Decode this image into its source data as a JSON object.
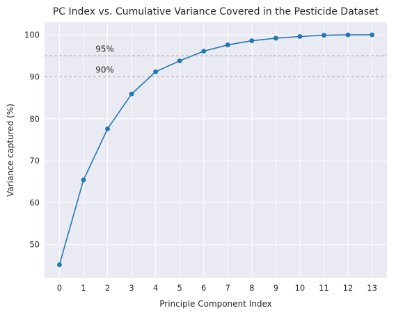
{
  "chart_data": {
    "type": "line",
    "title": "PC Index vs. Cumulative Variance Covered in the Pesticide Dataset",
    "xlabel": "Principle Component Index",
    "ylabel": "Variance captured (%)",
    "x": [
      0,
      1,
      2,
      3,
      4,
      5,
      6,
      7,
      8,
      9,
      10,
      11,
      12,
      13
    ],
    "values": [
      45.2,
      65.4,
      77.6,
      85.9,
      91.2,
      93.8,
      96.1,
      97.6,
      98.6,
      99.2,
      99.6,
      99.9,
      100.0,
      100.0
    ],
    "xlim": [
      -0.62,
      13.62
    ],
    "ylim": [
      42,
      103
    ],
    "xticks": [
      0,
      1,
      2,
      3,
      4,
      5,
      6,
      7,
      8,
      9,
      10,
      11,
      12,
      13
    ],
    "yticks": [
      50,
      60,
      70,
      80,
      90,
      100
    ],
    "reference_lines": [
      {
        "y": 95,
        "label": "95%",
        "label_x": 1.5
      },
      {
        "y": 90,
        "label": "90%",
        "label_x": 1.5
      }
    ],
    "grid": true,
    "colors": {
      "line": "#1f77b4",
      "background": "#eaeaf2",
      "grid": "#ffffff",
      "reference": "#a0a0a0"
    }
  }
}
